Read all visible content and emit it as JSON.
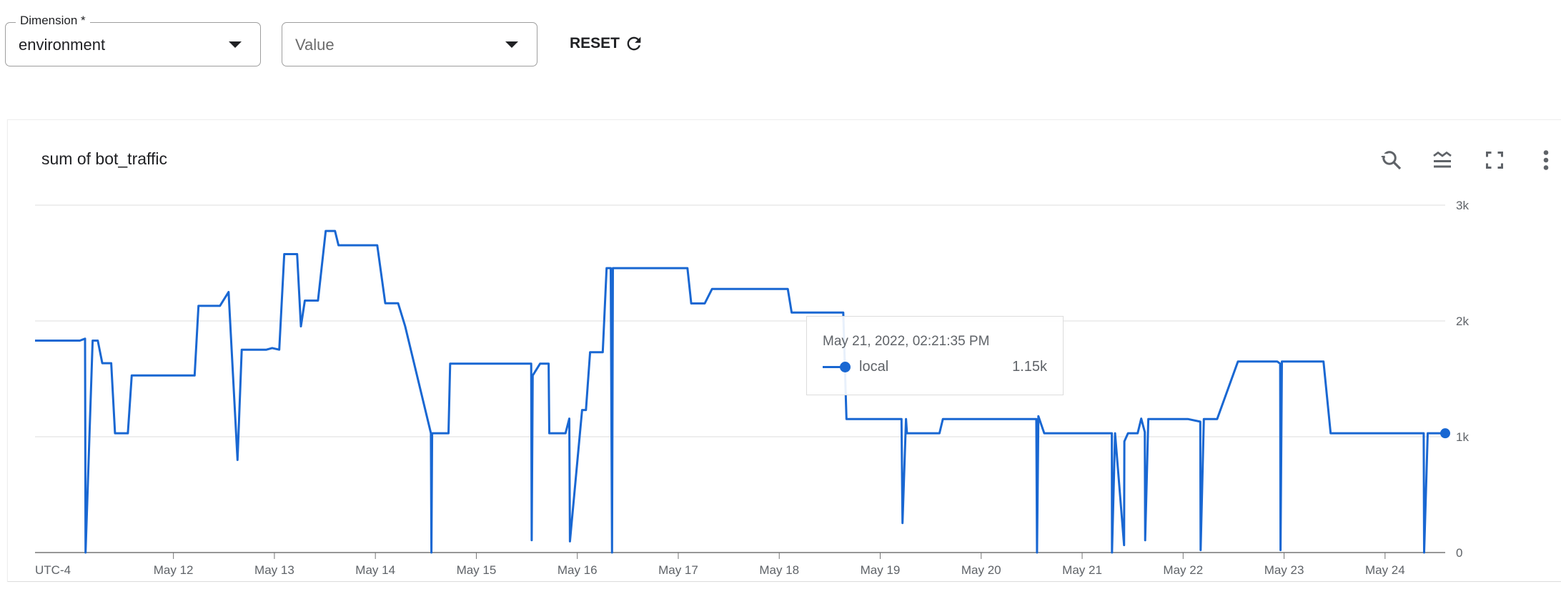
{
  "filters": {
    "dimension": {
      "label": "Dimension *",
      "value": "environment"
    },
    "value": {
      "placeholder": "Value"
    },
    "reset_label": "RESET"
  },
  "card": {
    "title": "sum of bot_traffic",
    "icons": [
      "reset-zoom-icon",
      "line-style-icon",
      "fullscreen-icon",
      "more-vert-icon"
    ]
  },
  "tooltip": {
    "date": "May 21, 2022, 02:21:35 PM",
    "series": "local",
    "value": "1.15k"
  },
  "colors": {
    "series": "#1967d2",
    "grid": "#e8e8e8",
    "axis": "#757575"
  },
  "chart_data": {
    "type": "line",
    "title": "sum of bot_traffic",
    "timezone_label": "UTC-4",
    "xlim": [
      "2022-05-10T15:06",
      "2022-05-24T14:18"
    ],
    "x_ticks": [
      "May 12",
      "May 13",
      "May 14",
      "May 15",
      "May 16",
      "May 17",
      "May 18",
      "May 19",
      "May 20",
      "May 21",
      "May 22",
      "May 23",
      "May 24"
    ],
    "ylim": [
      0,
      3000
    ],
    "y_ticks": [
      {
        "value": 0,
        "label": "0"
      },
      {
        "value": 1000,
        "label": "1k"
      },
      {
        "value": 2000,
        "label": "2k"
      },
      {
        "value": 3000,
        "label": "3k"
      }
    ],
    "grid": true,
    "y_axis_position": "right",
    "series": [
      {
        "name": "local",
        "points": [
          [
            "2022-05-10T15:06",
            1830
          ],
          [
            "2022-05-11T01:45",
            1830
          ],
          [
            "2022-05-11T03:00",
            1847
          ],
          [
            "2022-05-11T03:07",
            0
          ],
          [
            "2022-05-11T04:48",
            1830
          ],
          [
            "2022-05-11T06:01",
            1830
          ],
          [
            "2022-05-11T07:05",
            1635
          ],
          [
            "2022-05-11T09:13",
            1635
          ],
          [
            "2022-05-11T10:07",
            1030
          ],
          [
            "2022-05-11T13:10",
            1030
          ],
          [
            "2022-05-11T14:05",
            1529
          ],
          [
            "2022-05-12T05:02",
            1529
          ],
          [
            "2022-05-12T05:57",
            2130
          ],
          [
            "2022-05-12T11:03",
            2130
          ],
          [
            "2022-05-12T13:06",
            2250
          ],
          [
            "2022-05-12T15:14",
            800
          ],
          [
            "2022-05-12T16:14",
            1752
          ],
          [
            "2022-05-12T22:06",
            1752
          ],
          [
            "2022-05-12T23:28",
            1766
          ],
          [
            "2022-05-13T01:09",
            1752
          ],
          [
            "2022-05-13T02:21",
            2577
          ],
          [
            "2022-05-13T05:24",
            2577
          ],
          [
            "2022-05-13T06:18",
            1953
          ],
          [
            "2022-05-13T07:14",
            2176
          ],
          [
            "2022-05-13T10:22",
            2176
          ],
          [
            "2022-05-13T12:12",
            2777
          ],
          [
            "2022-05-13T14:24",
            2777
          ],
          [
            "2022-05-13T15:14",
            2654
          ],
          [
            "2022-05-14T00:27",
            2654
          ],
          [
            "2022-05-14T02:21",
            2153
          ],
          [
            "2022-05-14T05:24",
            2153
          ],
          [
            "2022-05-14T07:05",
            1953
          ],
          [
            "2022-05-14T13:12",
            1030
          ],
          [
            "2022-05-14T13:19",
            0
          ],
          [
            "2022-05-14T13:30",
            1030
          ],
          [
            "2022-05-14T17:23",
            1030
          ],
          [
            "2022-05-14T17:46",
            1631
          ],
          [
            "2022-05-15T13:02",
            1631
          ],
          [
            "2022-05-15T13:10",
            106
          ],
          [
            "2022-05-15T13:24",
            1529
          ],
          [
            "2022-05-15T15:09",
            1631
          ],
          [
            "2022-05-15T17:11",
            1631
          ],
          [
            "2022-05-15T17:20",
            1030
          ],
          [
            "2022-05-15T21:12",
            1030
          ],
          [
            "2022-05-15T22:06",
            1157
          ],
          [
            "2022-05-15T22:15",
            96
          ],
          [
            "2022-05-16T01:08",
            1231
          ],
          [
            "2022-05-16T02:03",
            1231
          ],
          [
            "2022-05-16T03:02",
            1730
          ],
          [
            "2022-05-16T06:03",
            1730
          ],
          [
            "2022-05-16T06:58",
            2456
          ],
          [
            "2022-05-16T07:57",
            2456
          ],
          [
            "2022-05-16T08:15",
            0
          ],
          [
            "2022-05-16T08:28",
            2456
          ],
          [
            "2022-05-17T02:11",
            2456
          ],
          [
            "2022-05-17T03:05",
            2151
          ],
          [
            "2022-05-17T06:17",
            2151
          ],
          [
            "2022-05-17T08:01",
            2276
          ],
          [
            "2022-05-18T02:02",
            2276
          ],
          [
            "2022-05-18T02:57",
            2072
          ],
          [
            "2022-05-18T15:13",
            2072
          ],
          [
            "2022-05-18T15:59",
            1153
          ],
          [
            "2022-05-19T05:04",
            1153
          ],
          [
            "2022-05-19T05:18",
            255
          ],
          [
            "2022-05-19T06:08",
            1153
          ],
          [
            "2022-05-19T06:21",
            1030
          ],
          [
            "2022-05-19T14:05",
            1030
          ],
          [
            "2022-05-19T14:54",
            1153
          ],
          [
            "2022-05-20T13:06",
            1153
          ],
          [
            "2022-05-20T13:16",
            0
          ],
          [
            "2022-05-20T13:36",
            1178
          ],
          [
            "2022-05-20T14:59",
            1030
          ],
          [
            "2022-05-21T07:04",
            1030
          ],
          [
            "2022-05-21T07:06",
            0
          ],
          [
            "2022-05-21T07:50",
            1030
          ],
          [
            "2022-05-21T09:58",
            64
          ],
          [
            "2022-05-21T10:02",
            960
          ],
          [
            "2022-05-21T10:54",
            1030
          ],
          [
            "2022-05-21T13:12",
            1030
          ],
          [
            "2022-05-21T14:03",
            1157
          ],
          [
            "2022-05-21T14:54",
            1040
          ],
          [
            "2022-05-21T14:59",
            106
          ],
          [
            "2022-05-21T15:44",
            1153
          ],
          [
            "2022-05-22T01:06",
            1153
          ],
          [
            "2022-05-22T04:05",
            1130
          ],
          [
            "2022-05-22T04:10",
            21
          ],
          [
            "2022-05-22T04:56",
            1153
          ],
          [
            "2022-05-22T08:05",
            1153
          ],
          [
            "2022-05-22T13:02",
            1650
          ],
          [
            "2022-05-22T22:23",
            1650
          ],
          [
            "2022-05-22T23:04",
            1631
          ],
          [
            "2022-05-22T23:09",
            21
          ],
          [
            "2022-05-22T23:29",
            1650
          ],
          [
            "2022-05-23T09:22",
            1650
          ],
          [
            "2022-05-23T11:04",
            1030
          ],
          [
            "2022-05-24T09:11",
            1030
          ],
          [
            "2022-05-24T09:17",
            0
          ],
          [
            "2022-05-24T10:08",
            1030
          ],
          [
            "2022-05-24T14:18",
            1030
          ]
        ]
      }
    ]
  }
}
